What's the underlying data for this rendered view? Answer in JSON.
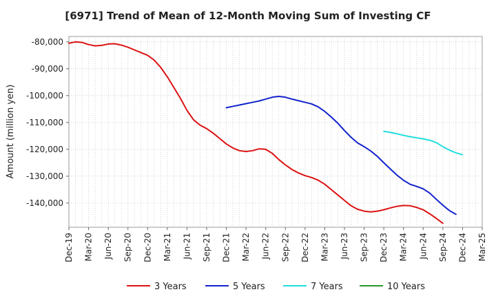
{
  "chart_data": {
    "type": "line",
    "title": "[6971]  Trend of Mean of 12-Month Moving Sum of Investing CF",
    "xlabel": "",
    "ylabel": "Amount (million yen)",
    "ylim": [
      -149000,
      -78000
    ],
    "yticks": [
      -80000,
      -90000,
      -100000,
      -110000,
      -120000,
      -130000,
      -140000
    ],
    "ytick_labels": [
      "-80,000",
      "-90,000",
      "-100,000",
      "-110,000",
      "-120,000",
      "-130,000",
      "-140,000"
    ],
    "x_start": "2019-12",
    "x_end": "2025-03",
    "xtick_labels": [
      "Dec-19",
      "Mar-20",
      "Jun-20",
      "Sep-20",
      "Dec-20",
      "Mar-21",
      "Jun-21",
      "Sep-21",
      "Dec-21",
      "Mar-22",
      "Jun-22",
      "Sep-22",
      "Dec-22",
      "Mar-23",
      "Jun-23",
      "Sep-23",
      "Dec-23",
      "Mar-24",
      "Jun-24",
      "Sep-24",
      "Dec-24",
      "Mar-25"
    ],
    "grid": true,
    "legend_position": "bottom",
    "series": [
      {
        "name": "3 Years",
        "color": "#dd1111",
        "start_index": 0,
        "values": [
          -80500,
          -80000,
          -80200,
          -81000,
          -81500,
          -81300,
          -80800,
          -80700,
          -81200,
          -82000,
          -83000,
          -84000,
          -85000,
          -86800,
          -89500,
          -93000,
          -97000,
          -101000,
          -105500,
          -109000,
          -111000,
          -112300,
          -114000,
          -116000,
          -118000,
          -119500,
          -120500,
          -120800,
          -120500,
          -119800,
          -120000,
          -121500,
          -123800,
          -125800,
          -127500,
          -128800,
          -129800,
          -130500,
          -131500,
          -133000,
          -135000,
          -137000,
          -139000,
          -141000,
          -142300,
          -143000,
          -143300,
          -143000,
          -142500,
          -141800,
          -141200,
          -140900,
          -141000,
          -141600,
          -142500,
          -144000,
          -145700,
          -147500
        ]
      },
      {
        "name": "5 Years",
        "color": "#1122cc",
        "start_index": 24,
        "values": [
          -104500,
          -104000,
          -103500,
          -103000,
          -102500,
          -102000,
          -101300,
          -100600,
          -100300,
          -100600,
          -101300,
          -101900,
          -102500,
          -103100,
          -104200,
          -105900,
          -108000,
          -110300,
          -113000,
          -115500,
          -117600,
          -119000,
          -120600,
          -122600,
          -125000,
          -127300,
          -129600,
          -131500,
          -133000,
          -133800,
          -134700,
          -136300,
          -138600,
          -140800,
          -142800,
          -144200
        ]
      },
      {
        "name": "7 Years",
        "color": "#22dddd",
        "start_index": 48,
        "values": [
          -113300,
          -113700,
          -114200,
          -114800,
          -115300,
          -115700,
          -116100,
          -116600,
          -117500,
          -119000,
          -120300,
          -121300,
          -122000
        ]
      },
      {
        "name": "10 Years",
        "color": "#229922",
        "start_index": 0,
        "values": []
      }
    ]
  }
}
